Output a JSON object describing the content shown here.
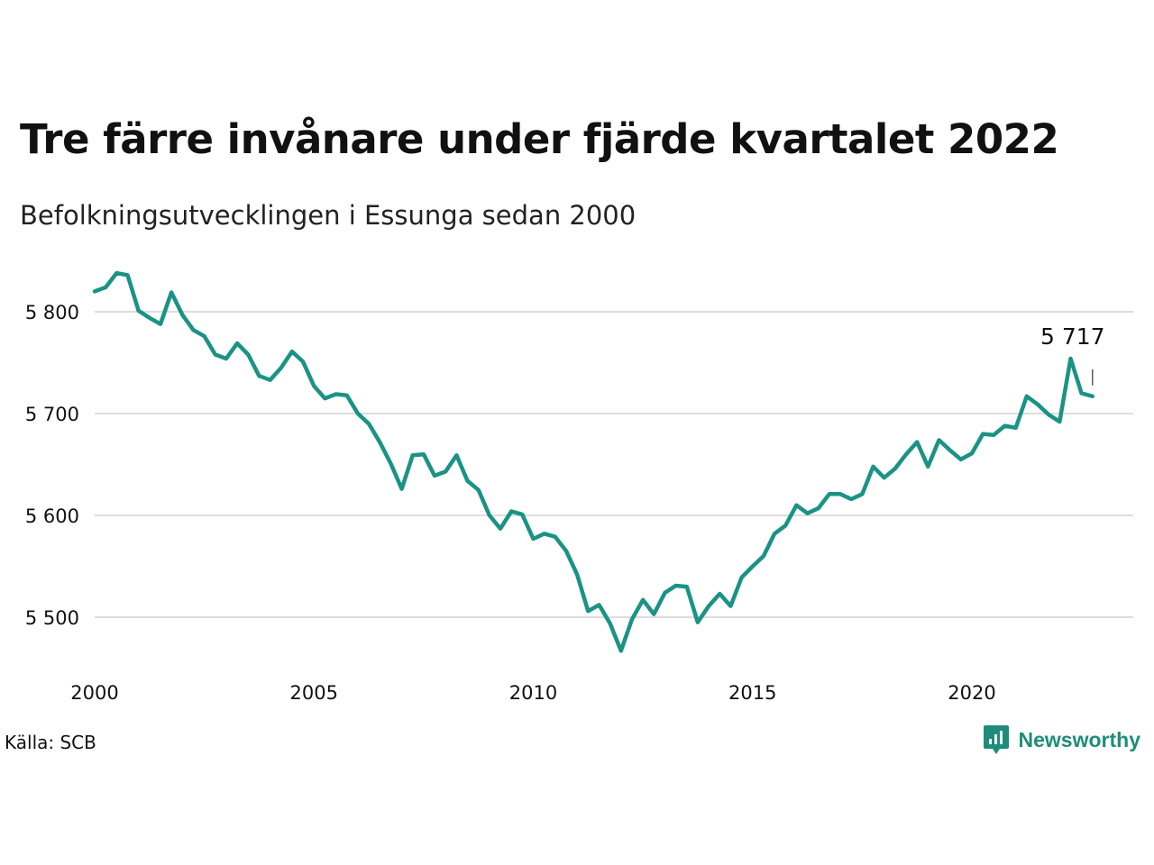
{
  "title": "Tre färre invånare under fjärde kvartalet 2022",
  "subtitle": "Befolkningsutvecklingen i Essunga sedan 2000",
  "source": "Källa: SCB",
  "brand": "Newsworthy",
  "colors": {
    "line": "#1a9385",
    "grid": "#dddddd",
    "brand": "#1f8c7b"
  },
  "chart_data": {
    "type": "line",
    "title": "Tre färre invånare under fjärde kvartalet 2022",
    "subtitle": "Befolkningsutvecklingen i Essunga sedan 2000",
    "xlabel": "",
    "ylabel": "",
    "x_ticks": [
      2000,
      2005,
      2010,
      2015,
      2020
    ],
    "y_ticks": [
      5500,
      5600,
      5700,
      5800
    ],
    "y_tick_labels": [
      "5 500",
      "5 600",
      "5 700",
      "5 800"
    ],
    "ylim": [
      5450,
      5850
    ],
    "xlim": [
      2000,
      2023.5
    ],
    "grid": "horizontal",
    "last_value_label": "5 717",
    "x": [
      2000.0,
      2000.25,
      2000.5,
      2000.75,
      2001.0,
      2001.25,
      2001.5,
      2001.75,
      2002.0,
      2002.25,
      2002.5,
      2002.75,
      2003.0,
      2003.25,
      2003.5,
      2003.75,
      2004.0,
      2004.25,
      2004.5,
      2004.75,
      2005.0,
      2005.25,
      2005.5,
      2005.75,
      2006.0,
      2006.25,
      2006.5,
      2006.75,
      2007.0,
      2007.25,
      2007.5,
      2007.75,
      2008.0,
      2008.25,
      2008.5,
      2008.75,
      2009.0,
      2009.25,
      2009.5,
      2009.75,
      2010.0,
      2010.25,
      2010.5,
      2010.75,
      2011.0,
      2011.25,
      2011.5,
      2011.75,
      2012.0,
      2012.25,
      2012.5,
      2012.75,
      2013.0,
      2013.25,
      2013.5,
      2013.75,
      2014.0,
      2014.25,
      2014.5,
      2014.75,
      2015.0,
      2015.25,
      2015.5,
      2015.75,
      2016.0,
      2016.25,
      2016.5,
      2016.75,
      2017.0,
      2017.25,
      2017.5,
      2017.75,
      2018.0,
      2018.25,
      2018.5,
      2018.75,
      2019.0,
      2019.25,
      2019.5,
      2019.75,
      2020.0,
      2020.25,
      2020.5,
      2020.75,
      2021.0,
      2021.25,
      2021.5,
      2021.75,
      2022.0,
      2022.25,
      2022.5,
      2022.75
    ],
    "values": [
      5820,
      5824,
      5838,
      5836,
      5801,
      5794,
      5788,
      5819,
      5797,
      5782,
      5776,
      5758,
      5754,
      5769,
      5758,
      5737,
      5733,
      5745,
      5761,
      5751,
      5727,
      5715,
      5719,
      5718,
      5700,
      5690,
      5672,
      5651,
      5626,
      5659,
      5660,
      5639,
      5643,
      5659,
      5634,
      5625,
      5600,
      5587,
      5604,
      5601,
      5577,
      5582,
      5579,
      5565,
      5542,
      5506,
      5512,
      5494,
      5467,
      5498,
      5517,
      5503,
      5524,
      5531,
      5530,
      5495,
      5511,
      5523,
      5511,
      5539,
      5550,
      5560,
      5582,
      5590,
      5610,
      5602,
      5607,
      5621,
      5621,
      5616,
      5621,
      5648,
      5637,
      5646,
      5660,
      5672,
      5648,
      5674,
      5664,
      5655,
      5661,
      5680,
      5679,
      5688,
      5686,
      5717,
      5709,
      5699,
      5692,
      5754,
      5720,
      5717
    ]
  }
}
